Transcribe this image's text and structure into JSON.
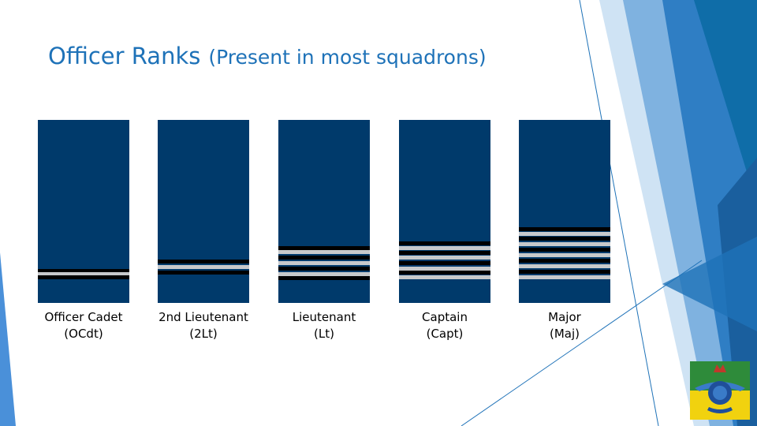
{
  "slide": {
    "title": "Officer Ranks",
    "subtitle": "(Present in most squadrons)"
  },
  "colors": {
    "title": "#1e72b8",
    "insignia_bg": "#003a6b",
    "stripe_dark": "#000000",
    "stripe_light": "#c7c9cb",
    "deco_blue": "#1e72b8",
    "crest_green": "#2e8b3a",
    "crest_yellow": "#f1d20f"
  },
  "ranks": [
    {
      "name": "Officer Cadet",
      "abbr": "(OCdt)",
      "stripes": [
        {
          "tone": "dark",
          "at": 0.815
        },
        {
          "tone": "light",
          "at": 0.83
        },
        {
          "tone": "dark",
          "at": 0.85
        }
      ]
    },
    {
      "name": "2nd Lieutenant",
      "abbr": "(2Lt)",
      "stripes": [
        {
          "tone": "dark",
          "at": 0.765
        },
        {
          "tone": "light",
          "at": 0.795
        },
        {
          "tone": "dark",
          "at": 0.825
        }
      ]
    },
    {
      "name": "Lieutenant",
      "abbr": "(Lt)",
      "stripes": [
        {
          "tone": "dark",
          "at": 0.69
        },
        {
          "tone": "light",
          "at": 0.712
        },
        {
          "tone": "dark",
          "at": 0.742
        },
        {
          "tone": "light",
          "at": 0.77
        },
        {
          "tone": "dark",
          "at": 0.8
        },
        {
          "tone": "light",
          "at": 0.83
        },
        {
          "tone": "dark",
          "at": 0.855
        }
      ]
    },
    {
      "name": "Captain",
      "abbr": "(Capt)",
      "stripes": [
        {
          "tone": "dark",
          "at": 0.665
        },
        {
          "tone": "light",
          "at": 0.69
        },
        {
          "tone": "dark",
          "at": 0.715
        },
        {
          "tone": "light",
          "at": 0.742
        },
        {
          "tone": "dark",
          "at": 0.77
        },
        {
          "tone": "light",
          "at": 0.8
        },
        {
          "tone": "dark",
          "at": 0.825
        },
        {
          "tone": "light",
          "at": 0.85
        }
      ]
    },
    {
      "name": "Major",
      "abbr": "(Maj)",
      "stripes": [
        {
          "tone": "dark",
          "at": 0.585
        },
        {
          "tone": "light",
          "at": 0.61
        },
        {
          "tone": "dark",
          "at": 0.64
        },
        {
          "tone": "light",
          "at": 0.67
        },
        {
          "tone": "dark",
          "at": 0.7
        },
        {
          "tone": "light",
          "at": 0.73
        },
        {
          "tone": "dark",
          "at": 0.76
        },
        {
          "tone": "light",
          "at": 0.79
        },
        {
          "tone": "dark",
          "at": 0.82
        },
        {
          "tone": "light",
          "at": 0.85
        }
      ]
    }
  ],
  "crest": {
    "icon": "squadron-crest-icon"
  }
}
